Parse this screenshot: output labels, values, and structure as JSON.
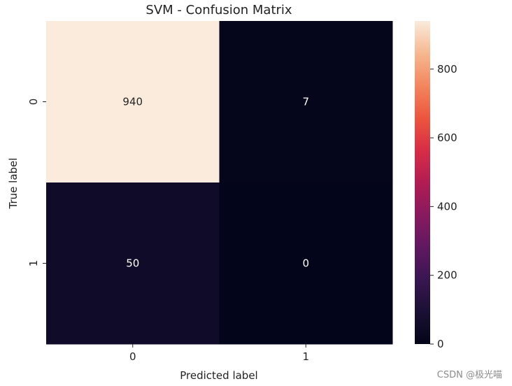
{
  "chart_data": {
    "type": "heatmap",
    "title": "SVM - Confusion Matrix",
    "xlabel": "Predicted label",
    "ylabel": "True label",
    "x_categories": [
      "0",
      "1"
    ],
    "y_categories": [
      "0",
      "1"
    ],
    "values": [
      [
        940,
        7
      ],
      [
        50,
        0
      ]
    ],
    "colormap": "rocket",
    "colorbar": {
      "min": 0,
      "max": 940,
      "ticks": [
        0,
        200,
        400,
        600,
        800
      ]
    },
    "grid": false
  },
  "watermark": "CSDN @极光喵"
}
